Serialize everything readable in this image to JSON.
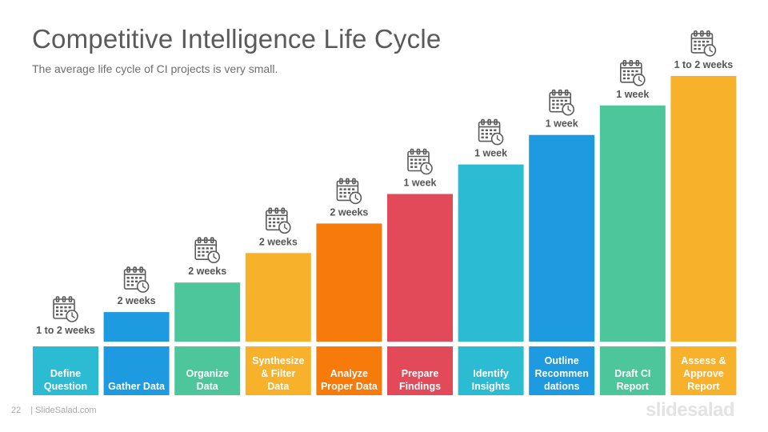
{
  "title": "Competitive Intelligence Life Cycle",
  "subtitle": "The average life cycle of CI projects is very small.",
  "footer": {
    "page_number": "22",
    "site": "| SlideSalad.com",
    "brand": "slidesalad"
  },
  "colors": {
    "cyan": "#2bbcd4",
    "blue": "#1e9be0",
    "green": "#4dc69b",
    "yellow": "#f8b12b",
    "orange": "#f67b0a",
    "red": "#e24959",
    "icon": "#5b5b5b",
    "label": "#555555"
  },
  "chart_data": {
    "type": "bar",
    "categories": [
      "Define Question",
      "Gather Data",
      "Organize Data",
      "Synthesize & Filter Data",
      "Analyze Proper Data",
      "Prepare Findings",
      "Identify Insights",
      "Outline Recommendations",
      "Draft CI Report",
      "Assess & Approve Report"
    ],
    "category_lines": [
      [
        "Define",
        "Question"
      ],
      [
        "Gather Data"
      ],
      [
        "Organize",
        "Data"
      ],
      [
        "Synthesize",
        "& Filter",
        "Data"
      ],
      [
        "Analyze",
        "Proper Data"
      ],
      [
        "Prepare",
        "Findings"
      ],
      [
        "Identify",
        "Insights"
      ],
      [
        "Outline",
        "Recommen",
        "dations"
      ],
      [
        "Draft CI",
        "Report"
      ],
      [
        "Assess &",
        "Approve",
        "Report"
      ]
    ],
    "values": [
      0,
      1,
      2,
      3,
      4,
      5,
      6,
      7,
      8,
      9
    ],
    "duration_labels": [
      "1 to 2 weeks",
      "2 weeks",
      "2 weeks",
      "2 weeks",
      "2 weeks",
      "1 week",
      "1 week",
      "1 week",
      "1 week",
      "1 to 2 weeks"
    ],
    "bar_colors": [
      "#2bbcd4",
      "#1e9be0",
      "#4dc69b",
      "#f8b12b",
      "#f67b0a",
      "#e24959",
      "#2bbcd4",
      "#1e9be0",
      "#4dc69b",
      "#f8b12b"
    ],
    "icon": "calendar-clock-icon"
  }
}
